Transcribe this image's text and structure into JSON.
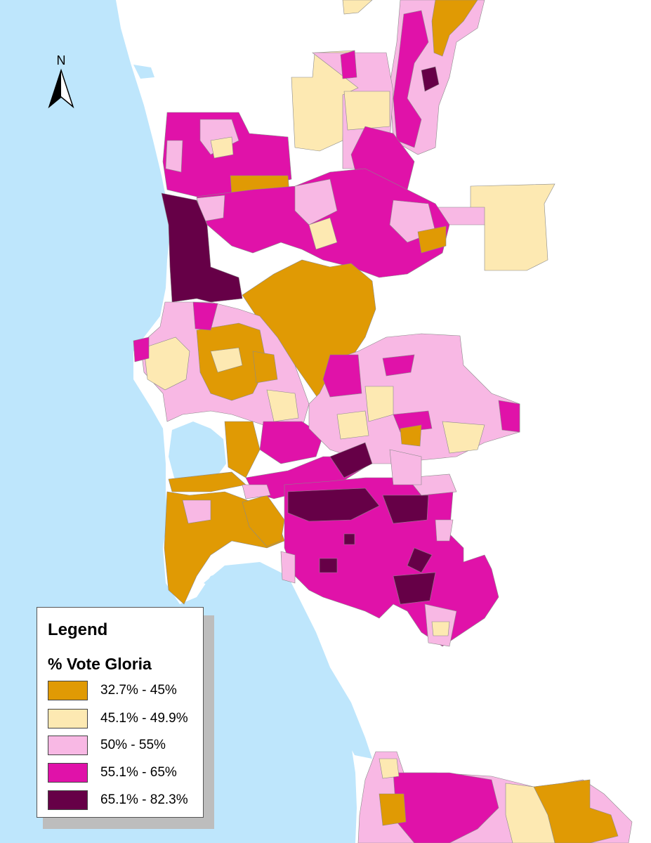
{
  "north_arrow": {
    "label": "N"
  },
  "legend": {
    "title": "Legend",
    "subtitle": "% Vote Gloria",
    "classes": [
      {
        "label": "32.7% - 45%",
        "color": "#E09A04"
      },
      {
        "label": "45.1% - 49.9%",
        "color": "#FDE9B2"
      },
      {
        "label": "50% - 55%",
        "color": "#F8B8E4"
      },
      {
        "label": "55.1% - 65%",
        "color": "#E012A9"
      },
      {
        "label": "65.1% - 82.3%",
        "color": "#660047"
      }
    ]
  },
  "colors": {
    "water": "#BEE6FC",
    "land": "#FFFFFF",
    "boundary": "#8a8a8a"
  }
}
